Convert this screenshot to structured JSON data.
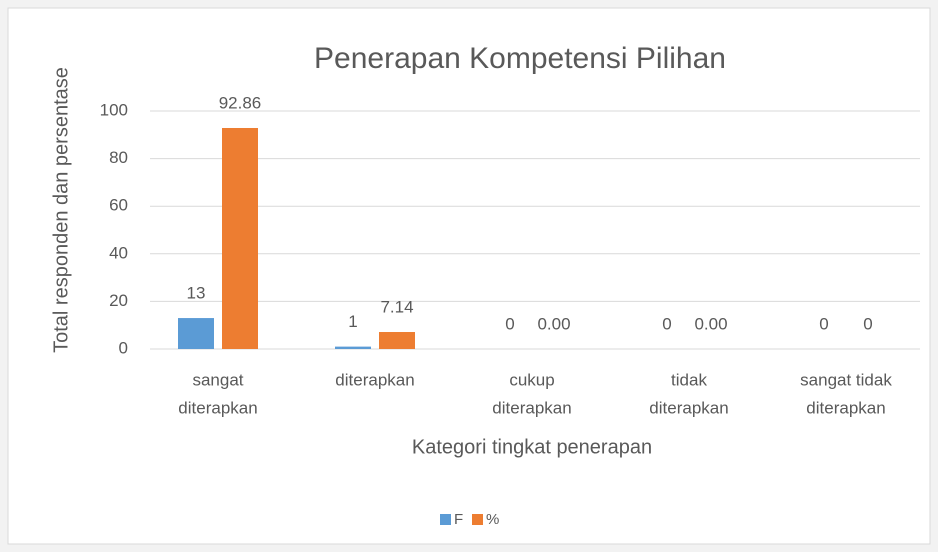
{
  "chart_data": {
    "type": "bar",
    "title": "Penerapan Kompetensi Pilihan",
    "x_label": "Kategori tingkat penerapan",
    "y_label": "Total responden dan persentase",
    "categories": [
      [
        "sangat",
        "diterapkan"
      ],
      [
        "diterapkan"
      ],
      [
        "cukup",
        "diterapkan"
      ],
      [
        "tidak",
        "diterapkan"
      ],
      [
        "sangat tidak",
        "diterapkan"
      ]
    ],
    "series": [
      {
        "name": "F",
        "color": "#5b9bd5",
        "values": [
          13,
          1,
          0,
          0,
          0
        ]
      },
      {
        "name": "%",
        "color": "#ed7d31",
        "values": [
          92.86,
          7.14,
          0,
          0,
          0
        ],
        "value_labels": [
          "92.86",
          "7.14",
          "0.00",
          "0.00",
          "0"
        ]
      }
    ],
    "ylim": [
      0,
      100
    ],
    "yticks": [
      0,
      20,
      40,
      60,
      80,
      100
    ],
    "grid": true,
    "legend": "bottom"
  }
}
